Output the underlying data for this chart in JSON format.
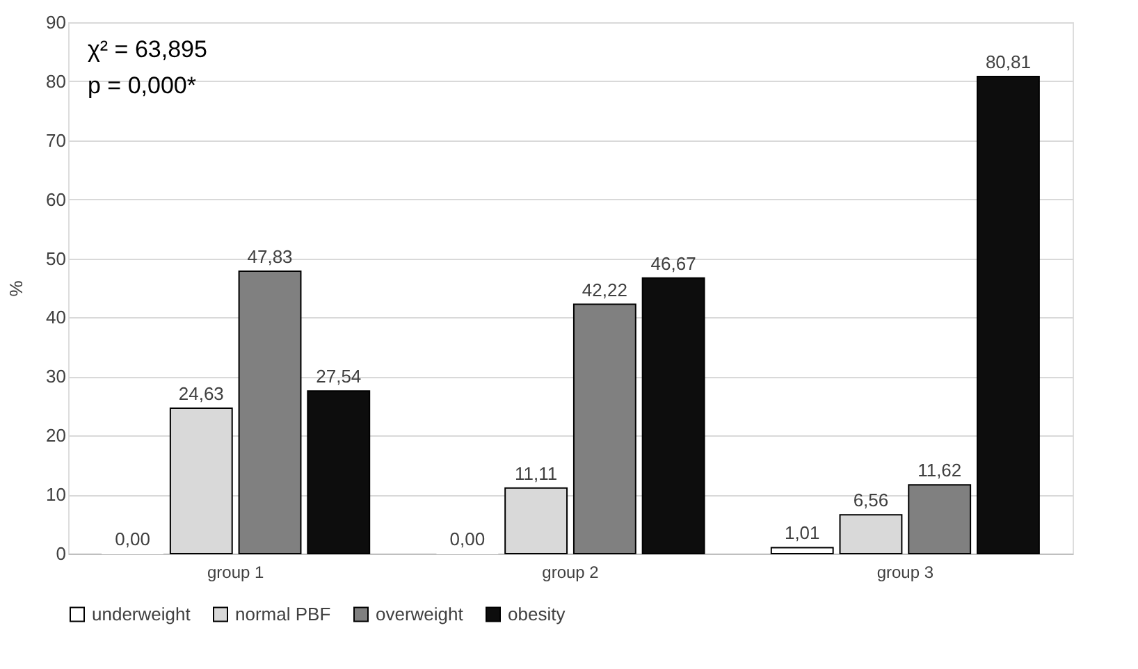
{
  "chart_data": {
    "type": "bar",
    "ylabel": "%",
    "categories": [
      "group 1",
      "group 2",
      "group 3"
    ],
    "series": [
      {
        "name": "underweight",
        "color": "#ffffff",
        "values": [
          0,
          0,
          1.01
        ],
        "value_labels": [
          "0,00",
          "0,00",
          "1,01"
        ]
      },
      {
        "name": "normal PBF",
        "color": "#d9d9d9",
        "values": [
          24.63,
          11.11,
          6.56
        ],
        "value_labels": [
          "24,63",
          "11,11",
          "6,56"
        ]
      },
      {
        "name": "overweight",
        "color": "#808080",
        "values": [
          47.83,
          42.22,
          11.62
        ],
        "value_labels": [
          "47,83",
          "42,22",
          "11,62"
        ]
      },
      {
        "name": "obesity",
        "color": "#0d0d0d",
        "values": [
          27.54,
          46.67,
          80.81
        ],
        "value_labels": [
          "27,54",
          "46,67",
          "80,81"
        ]
      }
    ],
    "ylim": [
      0,
      90
    ],
    "yticks": [
      0,
      10,
      20,
      30,
      40,
      50,
      60,
      70,
      80,
      90
    ],
    "grid": "y",
    "legend": "bottom",
    "annotations": [
      "χ² = 63,895",
      "p = 0,000*"
    ]
  }
}
